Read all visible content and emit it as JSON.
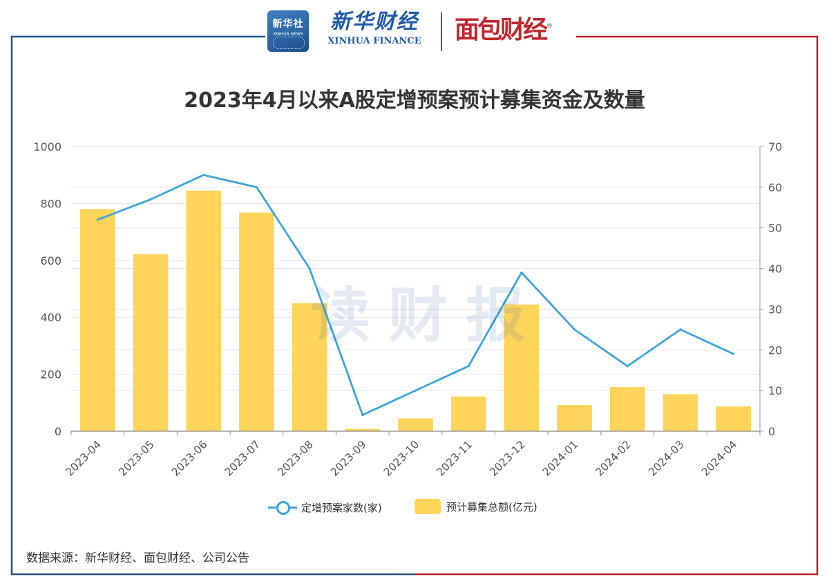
{
  "header": {
    "xinhua_logo_cn": "新华社",
    "xinhua_logo_en": "XINHUA NEWS",
    "xhf_cn": "新华财经",
    "xhf_en": "XINHUA FINANCE",
    "mianbao": "面包财经",
    "registered_mark": "®"
  },
  "watermark": "读财报",
  "footer": {
    "source": "数据来源：新华财经、面包财经、公司公告"
  },
  "colors": {
    "bar": "#ffd45a",
    "line": "#3ea3dc",
    "frame_left": "#1f4e8c",
    "frame_right": "#b3202a"
  },
  "chart_data": {
    "type": "bar",
    "title": "2023年4月以来A股定增预案预计募集资金及数量",
    "categories": [
      "2023-04",
      "2023-05",
      "2023-06",
      "2023-07",
      "2023-08",
      "2023-09",
      "2023-10",
      "2023-11",
      "2023-12",
      "2024-01",
      "2024-02",
      "2024-03",
      "2024-04"
    ],
    "series": [
      {
        "name": "预计募集总额(亿元)",
        "type": "bar",
        "axis": "left",
        "values": [
          780,
          622,
          845,
          768,
          450,
          8,
          45,
          122,
          445,
          92,
          155,
          130,
          87
        ]
      },
      {
        "name": "定增预案家数(家)",
        "type": "line",
        "axis": "right",
        "values": [
          52,
          57,
          63,
          60,
          40,
          4,
          10,
          16,
          39,
          25,
          16,
          25,
          19
        ]
      }
    ],
    "y_left": {
      "range": [
        0,
        1000
      ],
      "ticks": [
        "0",
        "200",
        "400",
        "600",
        "800",
        "1000"
      ]
    },
    "y_right": {
      "range": [
        0,
        70
      ],
      "ticks": [
        "0",
        "10",
        "20",
        "30",
        "40",
        "50",
        "60",
        "70"
      ]
    },
    "grid": true,
    "legend_position": "bottom",
    "legend": [
      "定增预案家数(家)",
      "预计募集总额(亿元)"
    ]
  }
}
